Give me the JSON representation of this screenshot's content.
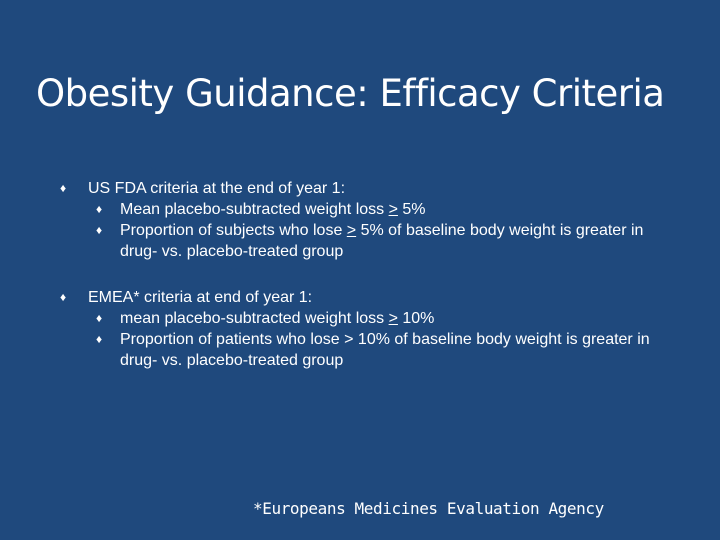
{
  "title": "Obesity Guidance: Efficacy Criteria",
  "bullet_marker": "♦",
  "sections": [
    {
      "heading": "US FDA criteria at the end of year 1:",
      "items": [
        {
          "before": "Mean placebo-subtracted weight loss ",
          "op": ">",
          "after": " 5%"
        },
        {
          "before": "Proportion of subjects who lose ",
          "op": ">",
          "after": " 5% of baseline body weight is greater in drug- vs. placebo-treated group"
        }
      ]
    },
    {
      "heading": "EMEA* criteria at end of year 1:",
      "items": [
        {
          "before": "mean placebo-subtracted weight loss ",
          "op": ">",
          "after": " 10%"
        },
        {
          "before": "Proportion of patients who lose > 10% of baseline body weight is greater in drug- vs. placebo-treated group",
          "op": "",
          "after": ""
        }
      ]
    }
  ],
  "footnote": "*Europeans Medicines Evaluation Agency"
}
